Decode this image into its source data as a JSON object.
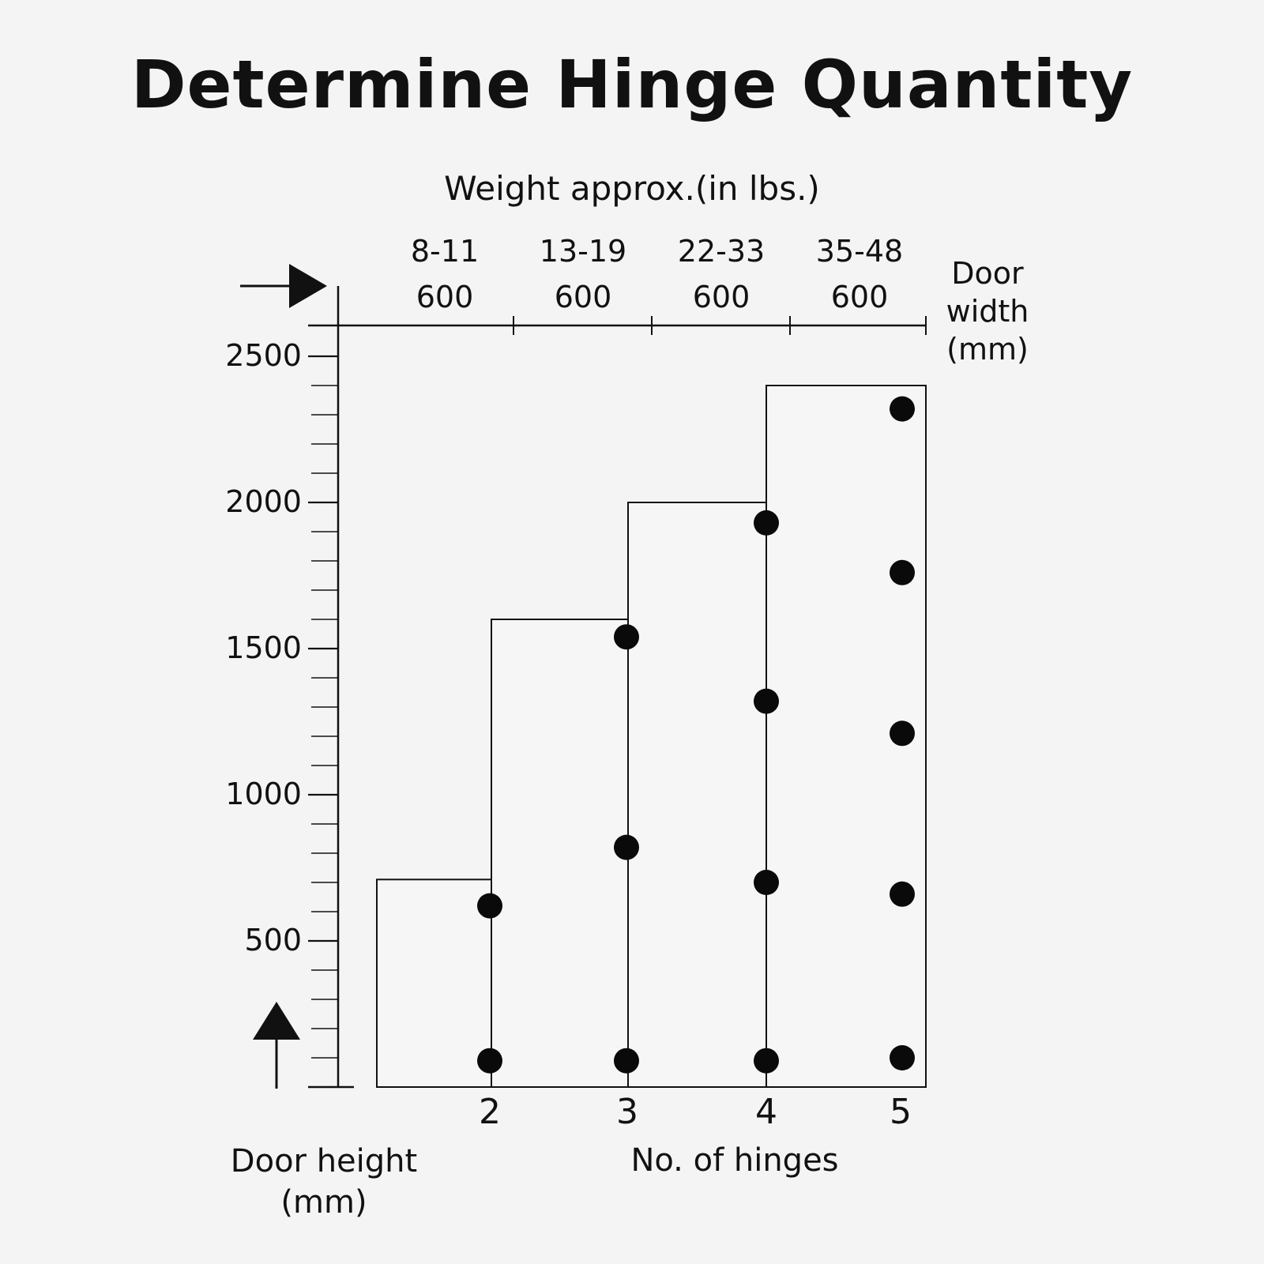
{
  "title": "Determine Hinge Quantity",
  "top_axis": {
    "label": "Weight approx.(in lbs.)",
    "weights": [
      "8-11",
      "13-19",
      "22-33",
      "35-48"
    ],
    "widths": [
      "600",
      "600",
      "600",
      "600"
    ],
    "right_label": "Door\nwidth\n(mm)"
  },
  "y_axis": {
    "label": "Door height\n(mm)",
    "ticks": [
      "2500",
      "2000",
      "1500",
      "1000",
      "500"
    ],
    "tick_values": [
      2500,
      2000,
      1500,
      1000,
      500
    ],
    "range": [
      0,
      2600
    ],
    "minor_step": 100
  },
  "x_axis": {
    "label": "No. of hinges",
    "ticks": [
      "2",
      "3",
      "4",
      "5"
    ]
  },
  "chart_data": {
    "type": "bar",
    "title": "Determine Hinge Quantity",
    "ylabel": "Door height (mm)",
    "xlabel": "No. of hinges",
    "categories": [
      "2",
      "3",
      "4",
      "5"
    ],
    "series": [
      {
        "values": [
          710,
          1600,
          2000,
          2400
        ]
      }
    ],
    "weights_lbs": [
      "8-11",
      "13-19",
      "22-33",
      "35-48"
    ],
    "door_width_mm": [
      600,
      600,
      600,
      600
    ],
    "hinge_heights_mm": [
      [
        90,
        620
      ],
      [
        90,
        820,
        1540
      ],
      [
        90,
        700,
        1320,
        1930
      ],
      [
        100,
        660,
        1210,
        1760,
        2320
      ]
    ],
    "ylim": [
      0,
      2600
    ],
    "grid": false
  }
}
